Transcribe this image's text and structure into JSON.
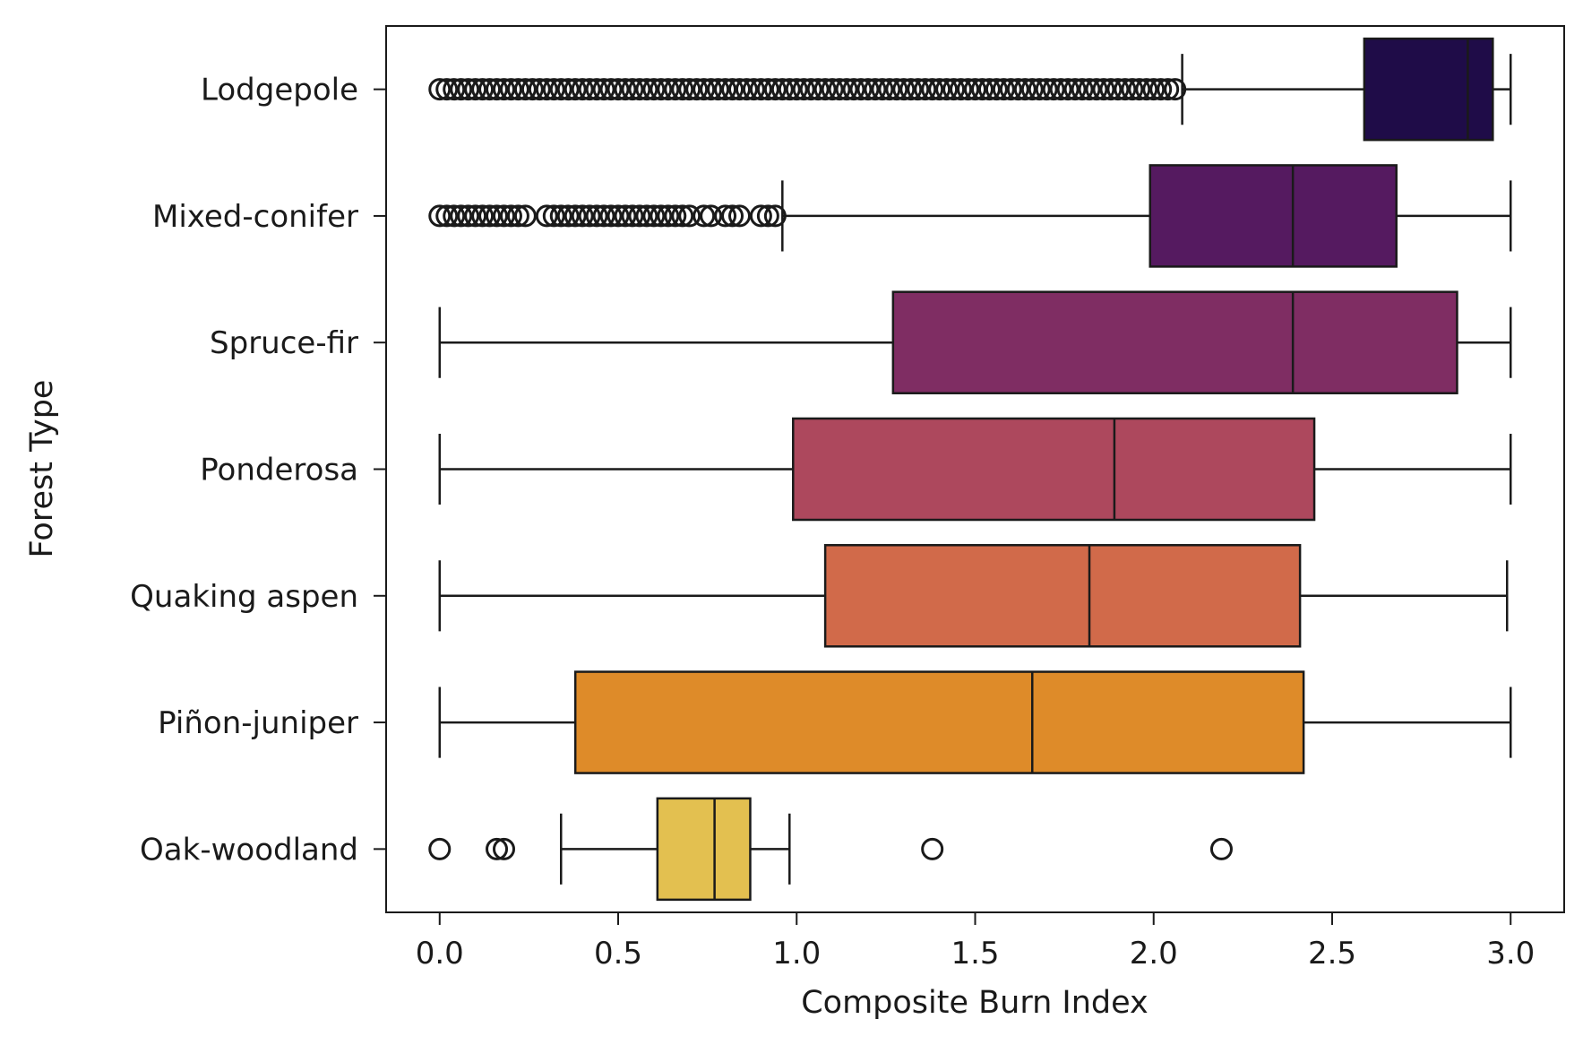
{
  "chart_data": {
    "type": "boxplot",
    "orientation": "horizontal",
    "xlabel": "Composite Burn Index",
    "ylabel": "Forest Type",
    "xlim": [
      -0.15,
      3.15
    ],
    "xticks": [
      0.0,
      0.5,
      1.0,
      1.5,
      2.0,
      2.5,
      3.0
    ],
    "xtick_labels": [
      "0.0",
      "0.5",
      "1.0",
      "1.5",
      "2.0",
      "2.5",
      "3.0"
    ],
    "grid": false,
    "categories": [
      "Lodgepole",
      "Mixed-conifer",
      "Spruce-fir",
      "Ponderosa",
      "Quaking aspen",
      "Piñon-juniper",
      "Oak-woodland"
    ],
    "boxes": [
      {
        "name": "Lodgepole",
        "whisker_low": 2.08,
        "q1": 2.59,
        "median": 2.88,
        "q3": 2.95,
        "whisker_high": 3.0,
        "color": "#1f0c48",
        "outliers": [
          0.0,
          0.02,
          0.04,
          0.06,
          0.08,
          0.1,
          0.12,
          0.14,
          0.16,
          0.18,
          0.2,
          0.22,
          0.24,
          0.26,
          0.28,
          0.3,
          0.32,
          0.34,
          0.36,
          0.38,
          0.4,
          0.42,
          0.44,
          0.46,
          0.48,
          0.5,
          0.52,
          0.54,
          0.56,
          0.58,
          0.6,
          0.62,
          0.64,
          0.66,
          0.68,
          0.7,
          0.72,
          0.74,
          0.76,
          0.78,
          0.8,
          0.82,
          0.84,
          0.86,
          0.88,
          0.9,
          0.92,
          0.94,
          0.96,
          0.98,
          1.0,
          1.02,
          1.04,
          1.06,
          1.08,
          1.1,
          1.12,
          1.14,
          1.16,
          1.18,
          1.2,
          1.22,
          1.24,
          1.26,
          1.28,
          1.3,
          1.32,
          1.34,
          1.36,
          1.38,
          1.4,
          1.42,
          1.44,
          1.46,
          1.48,
          1.5,
          1.52,
          1.54,
          1.56,
          1.58,
          1.6,
          1.62,
          1.64,
          1.66,
          1.68,
          1.7,
          1.72,
          1.74,
          1.76,
          1.78,
          1.8,
          1.82,
          1.84,
          1.86,
          1.88,
          1.9,
          1.92,
          1.94,
          1.96,
          1.98,
          2.0,
          2.02,
          2.04,
          2.06
        ]
      },
      {
        "name": "Mixed-conifer",
        "whisker_low": 0.96,
        "q1": 1.99,
        "median": 2.39,
        "q3": 2.68,
        "whisker_high": 3.0,
        "color": "#551a60",
        "outliers": [
          0.0,
          0.02,
          0.04,
          0.06,
          0.08,
          0.1,
          0.12,
          0.14,
          0.16,
          0.18,
          0.2,
          0.22,
          0.24,
          0.3,
          0.32,
          0.34,
          0.36,
          0.38,
          0.4,
          0.42,
          0.44,
          0.46,
          0.48,
          0.5,
          0.52,
          0.54,
          0.56,
          0.58,
          0.6,
          0.62,
          0.64,
          0.66,
          0.68,
          0.7,
          0.74,
          0.76,
          0.8,
          0.82,
          0.84,
          0.9,
          0.92,
          0.94
        ]
      },
      {
        "name": "Spruce-fir",
        "whisker_low": 0.0,
        "q1": 1.27,
        "median": 2.39,
        "q3": 2.85,
        "whisker_high": 3.0,
        "color": "#7f2d63",
        "outliers": []
      },
      {
        "name": "Ponderosa",
        "whisker_low": 0.0,
        "q1": 0.99,
        "median": 1.89,
        "q3": 2.45,
        "whisker_high": 3.0,
        "color": "#ad485d",
        "outliers": []
      },
      {
        "name": "Quaking aspen",
        "whisker_low": 0.0,
        "q1": 1.08,
        "median": 1.82,
        "q3": 2.41,
        "whisker_high": 2.99,
        "color": "#d16a4a",
        "outliers": []
      },
      {
        "name": "Piñon-juniper",
        "whisker_low": 0.0,
        "q1": 0.38,
        "median": 1.66,
        "q3": 2.42,
        "whisker_high": 3.0,
        "color": "#de8b29",
        "outliers": []
      },
      {
        "name": "Oak-woodland",
        "whisker_low": 0.34,
        "q1": 0.61,
        "median": 0.77,
        "q3": 0.87,
        "whisker_high": 0.98,
        "color": "#e3c050",
        "outliers": [
          0.0,
          0.16,
          0.18,
          1.38,
          2.19
        ]
      }
    ]
  }
}
